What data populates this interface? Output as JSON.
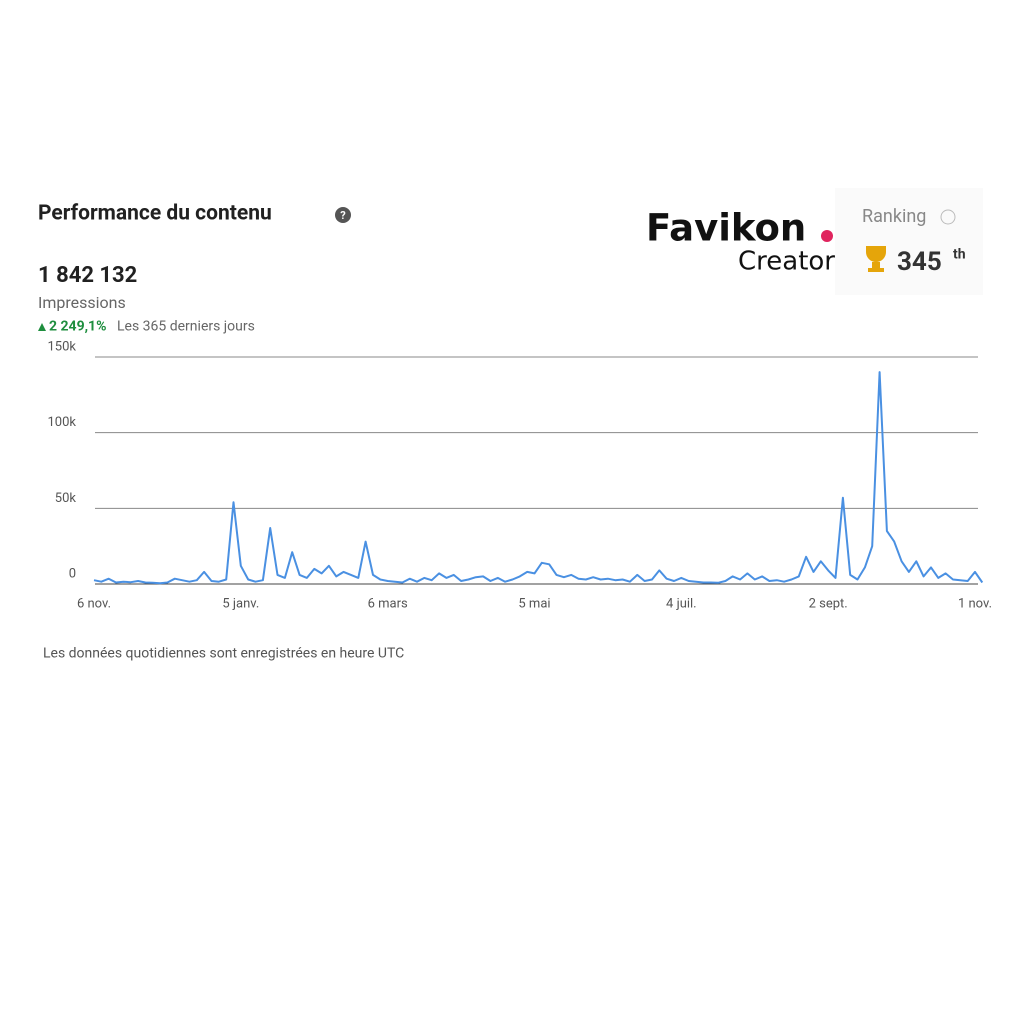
{
  "header": {
    "title": "Performance du contenu",
    "total": "1 842 132",
    "metric": "Impressions",
    "change": "2 249,1%",
    "period": "Les 365 derniers jours"
  },
  "brand": {
    "name": "Favikon",
    "tagline": "Creator",
    "ranking_label": "Ranking",
    "rank": "345",
    "rank_suffix": "th"
  },
  "footer": {
    "note": "Les données quotidiennes sont enregistrées en heure UTC"
  },
  "chart_data": {
    "type": "line",
    "color": "#4a90e2",
    "grid": true,
    "ylim": [
      0,
      150000
    ],
    "yticks": [
      0,
      {
        "value": 50000,
        "label": "50k"
      },
      {
        "value": 100000,
        "label": "100k"
      },
      {
        "value": 150000,
        "label": "150k"
      }
    ],
    "categories": [
      "6 nov.",
      null,
      null,
      null,
      null,
      null,
      null,
      null,
      null,
      null,
      null,
      null,
      null,
      null,
      null,
      null,
      null,
      null,
      null,
      null,
      "5 janv.",
      null,
      null,
      null,
      null,
      null,
      null,
      null,
      null,
      null,
      null,
      null,
      null,
      null,
      null,
      null,
      null,
      null,
      null,
      null,
      "6 mars",
      null,
      null,
      null,
      null,
      null,
      null,
      null,
      null,
      null,
      null,
      null,
      null,
      null,
      null,
      null,
      null,
      null,
      null,
      null,
      "5 mai",
      null,
      null,
      null,
      null,
      null,
      null,
      null,
      null,
      null,
      null,
      null,
      null,
      null,
      null,
      null,
      null,
      null,
      null,
      null,
      "4 juil.",
      null,
      null,
      null,
      null,
      null,
      null,
      null,
      null,
      null,
      null,
      null,
      null,
      null,
      null,
      null,
      null,
      null,
      null,
      null,
      "2 sept.",
      null,
      null,
      null,
      null,
      null,
      null,
      null,
      null,
      null,
      null,
      null,
      null,
      null,
      null,
      null,
      null,
      null,
      null,
      null,
      "1 nov.",
      null
    ],
    "values": [
      2500,
      1500,
      3500,
      1000,
      1500,
      1200,
      2000,
      1000,
      800,
      500,
      1000,
      3500,
      2500,
      1500,
      2500,
      8000,
      2000,
      1500,
      3000,
      54000,
      12000,
      3000,
      1500,
      2500,
      37000,
      6000,
      4000,
      21000,
      6000,
      4000,
      10000,
      7000,
      12000,
      5000,
      8000,
      6000,
      4000,
      28000,
      6000,
      3000,
      2000,
      1500,
      1000,
      3500,
      1500,
      4000,
      2500,
      7000,
      4000,
      6000,
      2000,
      3000,
      4500,
      5000,
      2000,
      4000,
      1500,
      3000,
      5000,
      8000,
      7000,
      14000,
      13000,
      6000,
      4500,
      6000,
      3500,
      3000,
      4500,
      3000,
      3500,
      2500,
      3000,
      1500,
      6000,
      2000,
      3000,
      9000,
      3500,
      2000,
      4000,
      2000,
      1500,
      1000,
      1000,
      800,
      2000,
      5000,
      3000,
      7000,
      3000,
      5000,
      2000,
      2500,
      1500,
      3000,
      5000,
      18000,
      8000,
      15000,
      9000,
      4000,
      57000,
      6000,
      3000,
      11000,
      25000,
      140000,
      35000,
      28000,
      15000,
      8000,
      15000,
      5000,
      11000,
      4000,
      7000,
      3000,
      2500,
      2000,
      8000,
      1000
    ]
  }
}
